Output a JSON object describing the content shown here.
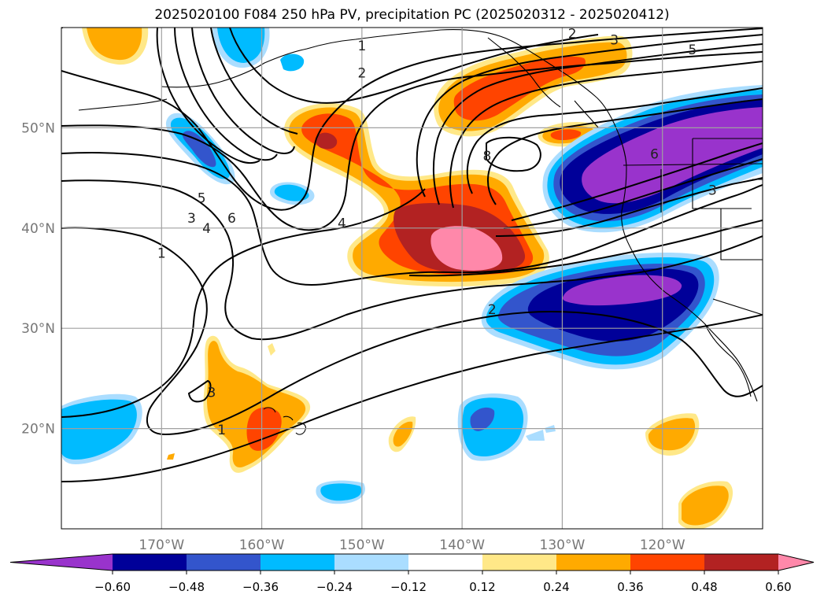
{
  "title": "2025020100 F084 250 hPa PV, precipitation PC (2025020312 - 2025020412)",
  "chart_data": {
    "type": "heatmap",
    "projection": "map",
    "title": "2025020100 F084 250 hPa PV, precipitation PC (2025020312 - 2025020412)",
    "lon_range": [
      -180,
      -110
    ],
    "lat_range": [
      10,
      60
    ],
    "grid": true,
    "lon_ticks": [
      {
        "value": -170,
        "label": "170°W"
      },
      {
        "value": -160,
        "label": "160°W"
      },
      {
        "value": -150,
        "label": "150°W"
      },
      {
        "value": -140,
        "label": "140°W"
      },
      {
        "value": -130,
        "label": "130°W"
      },
      {
        "value": -120,
        "label": "120°W"
      }
    ],
    "lat_ticks": [
      {
        "value": 20,
        "label": "20°N"
      },
      {
        "value": 30,
        "label": "30°N"
      },
      {
        "value": 40,
        "label": "40°N"
      },
      {
        "value": 50,
        "label": "50°N"
      }
    ],
    "colorbar": {
      "orientation": "horizontal",
      "extend": "both",
      "levels": [
        -0.72,
        -0.6,
        -0.48,
        -0.36,
        -0.24,
        -0.12,
        0.12,
        0.24,
        0.36,
        0.48,
        0.6,
        0.72
      ],
      "colors": [
        "#9933cc",
        "#000099",
        "#3355cc",
        "#00bbff",
        "#aaddff",
        "#ffffff",
        "#ffe888",
        "#ffaa00",
        "#ff4400",
        "#b22222",
        "#ff88aa"
      ],
      "tick_labels": [
        "−0.60",
        "−0.48",
        "−0.36",
        "−0.24",
        "−0.12",
        "0.12",
        "0.24",
        "0.36",
        "0.48",
        "0.60"
      ]
    },
    "pv_contour_labels": [
      {
        "text": "1",
        "lon": -170.0,
        "lat": 37.5
      },
      {
        "text": "3",
        "lon": -167.0,
        "lat": 41.0
      },
      {
        "text": "4",
        "lon": -165.5,
        "lat": 40.0
      },
      {
        "text": "5",
        "lon": -166.0,
        "lat": 43.0
      },
      {
        "text": "6",
        "lon": -163.0,
        "lat": 41.0
      },
      {
        "text": "4",
        "lon": -152.0,
        "lat": 40.5
      },
      {
        "text": "2",
        "lon": -150.0,
        "lat": 55.5
      },
      {
        "text": "1",
        "lon": -150.0,
        "lat": 58.2
      },
      {
        "text": "2",
        "lon": -129.0,
        "lat": 59.4
      },
      {
        "text": "3",
        "lon": -124.8,
        "lat": 58.8
      },
      {
        "text": "5",
        "lon": -117.0,
        "lat": 57.8
      },
      {
        "text": "8",
        "lon": -137.5,
        "lat": 47.2
      },
      {
        "text": "6",
        "lon": -120.8,
        "lat": 47.4
      },
      {
        "text": "3",
        "lon": -115.0,
        "lat": 43.8
      },
      {
        "text": "2",
        "lon": -137.0,
        "lat": 31.9
      },
      {
        "text": "3",
        "lon": -165.0,
        "lat": 23.6
      },
      {
        "text": "1",
        "lon": -164.0,
        "lat": 19.9
      }
    ]
  }
}
